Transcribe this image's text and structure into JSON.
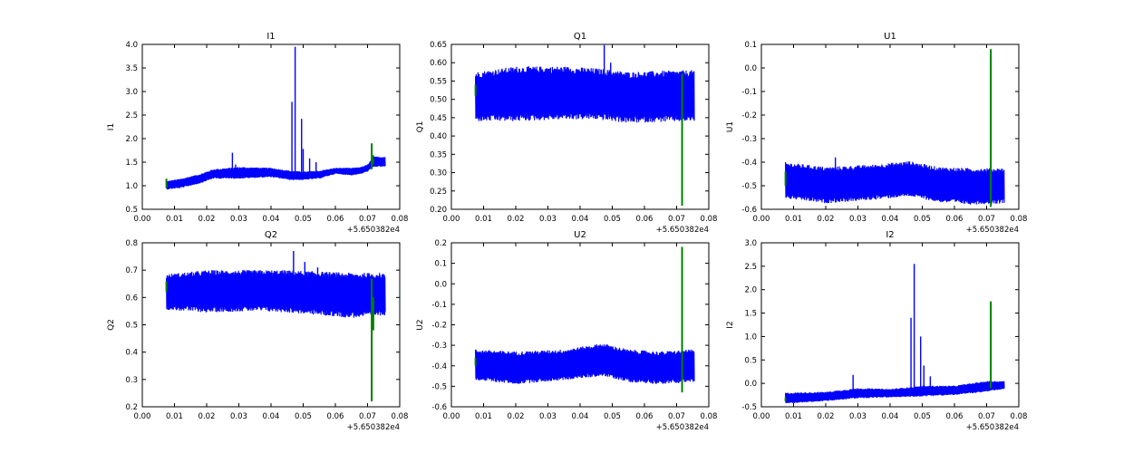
{
  "figure": {
    "background": "#ffffff",
    "series_colors": [
      "#0000ff",
      "#008000"
    ]
  },
  "chart_data": [
    {
      "type": "line",
      "title": "I1",
      "xlabel": "",
      "ylabel": "I1",
      "xlim": [
        0.0,
        0.08
      ],
      "ylim": [
        0.5,
        4.0
      ],
      "xticks": [
        "0.00",
        "0.01",
        "0.02",
        "0.03",
        "0.04",
        "0.05",
        "0.06",
        "0.07",
        "0.08"
      ],
      "yticks": [
        "0.5",
        "1.0",
        "1.5",
        "2.0",
        "2.5",
        "3.0",
        "3.5",
        "4.0"
      ],
      "x_offset_label": "+5.650382e4",
      "grid": false,
      "series": [
        {
          "color": "#0000ff",
          "x_range": [
            0.0075,
            0.0755
          ],
          "envelope": [
            [
              0.0075,
              0.92,
              1.1
            ],
            [
              0.012,
              0.95,
              1.15
            ],
            [
              0.018,
              1.05,
              1.25
            ],
            [
              0.022,
              1.15,
              1.35
            ],
            [
              0.03,
              1.15,
              1.4
            ],
            [
              0.04,
              1.18,
              1.38
            ],
            [
              0.046,
              1.12,
              1.32
            ],
            [
              0.05,
              1.12,
              1.3
            ],
            [
              0.055,
              1.15,
              1.32
            ],
            [
              0.06,
              1.25,
              1.38
            ],
            [
              0.065,
              1.22,
              1.38
            ],
            [
              0.068,
              1.25,
              1.4
            ],
            [
              0.07,
              1.3,
              1.45
            ],
            [
              0.072,
              1.4,
              1.62
            ],
            [
              0.0755,
              1.4,
              1.62
            ]
          ],
          "spikes": [
            [
              0.028,
              1.7
            ],
            [
              0.029,
              1.45
            ],
            [
              0.0465,
              2.78
            ],
            [
              0.0475,
              3.95
            ],
            [
              0.0495,
              2.42
            ],
            [
              0.05,
              1.78
            ],
            [
              0.052,
              1.58
            ],
            [
              0.054,
              1.5
            ]
          ]
        },
        {
          "color": "#008000",
          "segments": [
            [
              0.0075,
              0.95,
              1.15
            ],
            [
              0.0713,
              1.35,
              1.9
            ],
            [
              0.0717,
              1.45,
              1.65
            ]
          ]
        }
      ]
    },
    {
      "type": "line",
      "title": "Q1",
      "xlabel": "",
      "ylabel": "Q1",
      "xlim": [
        0.0,
        0.08
      ],
      "ylim": [
        0.2,
        0.65
      ],
      "xticks": [
        "0.00",
        "0.01",
        "0.02",
        "0.03",
        "0.04",
        "0.05",
        "0.06",
        "0.07",
        "0.08"
      ],
      "yticks": [
        "0.20",
        "0.25",
        "0.30",
        "0.35",
        "0.40",
        "0.45",
        "0.50",
        "0.55",
        "0.60",
        "0.65"
      ],
      "x_offset_label": "+5.650382e4",
      "grid": false,
      "series": [
        {
          "color": "#0000ff",
          "x_range": [
            0.0075,
            0.0755
          ],
          "envelope": [
            [
              0.0075,
              0.44,
              0.575
            ],
            [
              0.02,
              0.44,
              0.59
            ],
            [
              0.035,
              0.445,
              0.59
            ],
            [
              0.045,
              0.445,
              0.585
            ],
            [
              0.055,
              0.435,
              0.575
            ],
            [
              0.065,
              0.438,
              0.578
            ],
            [
              0.0755,
              0.44,
              0.58
            ]
          ],
          "spikes": [
            [
              0.0475,
              0.648
            ],
            [
              0.0495,
              0.6
            ]
          ]
        },
        {
          "color": "#008000",
          "segments": [
            [
              0.0075,
              0.51,
              0.54
            ],
            [
              0.0717,
              0.21,
              0.57
            ]
          ]
        }
      ]
    },
    {
      "type": "line",
      "title": "U1",
      "xlabel": "",
      "ylabel": "U1",
      "xlim": [
        0.0,
        0.08
      ],
      "ylim": [
        -0.6,
        0.1
      ],
      "xticks": [
        "0.00",
        "0.01",
        "0.02",
        "0.03",
        "0.04",
        "0.05",
        "0.06",
        "0.07",
        "0.08"
      ],
      "yticks": [
        "-0.6",
        "-0.5",
        "-0.4",
        "-0.3",
        "-0.2",
        "-0.1",
        "0.0",
        "0.1"
      ],
      "x_offset_label": "+5.650382e4",
      "grid": false,
      "series": [
        {
          "color": "#0000ff",
          "x_range": [
            0.0075,
            0.0755
          ],
          "envelope": [
            [
              0.0075,
              -0.555,
              -0.4
            ],
            [
              0.02,
              -0.575,
              -0.42
            ],
            [
              0.035,
              -0.56,
              -0.41
            ],
            [
              0.046,
              -0.545,
              -0.395
            ],
            [
              0.055,
              -0.57,
              -0.42
            ],
            [
              0.065,
              -0.58,
              -0.425
            ],
            [
              0.0755,
              -0.575,
              -0.425
            ]
          ],
          "spikes": [
            [
              0.023,
              -0.38
            ]
          ]
        },
        {
          "color": "#008000",
          "segments": [
            [
              0.0075,
              -0.5,
              -0.44
            ],
            [
              0.0713,
              -0.59,
              0.08
            ]
          ]
        }
      ]
    },
    {
      "type": "line",
      "title": "Q2",
      "xlabel": "",
      "ylabel": "Q2",
      "xlim": [
        0.0,
        0.08
      ],
      "ylim": [
        0.2,
        0.8
      ],
      "xticks": [
        "0.00",
        "0.01",
        "0.02",
        "0.03",
        "0.04",
        "0.05",
        "0.06",
        "0.07",
        "0.08"
      ],
      "yticks": [
        "0.2",
        "0.3",
        "0.4",
        "0.5",
        "0.6",
        "0.7",
        "0.8"
      ],
      "x_offset_label": "+5.650382e4",
      "grid": false,
      "series": [
        {
          "color": "#0000ff",
          "x_range": [
            0.0075,
            0.0755
          ],
          "envelope": [
            [
              0.0075,
              0.555,
              0.685
            ],
            [
              0.02,
              0.545,
              0.7
            ],
            [
              0.035,
              0.55,
              0.7
            ],
            [
              0.045,
              0.545,
              0.7
            ],
            [
              0.055,
              0.535,
              0.695
            ],
            [
              0.065,
              0.525,
              0.69
            ],
            [
              0.0755,
              0.535,
              0.69
            ]
          ],
          "spikes": [
            [
              0.047,
              0.77
            ],
            [
              0.0505,
              0.73
            ],
            [
              0.0545,
              0.71
            ]
          ]
        },
        {
          "color": "#008000",
          "segments": [
            [
              0.0075,
              0.62,
              0.66
            ],
            [
              0.0713,
              0.22,
              0.67
            ],
            [
              0.0718,
              0.48,
              0.6
            ]
          ]
        }
      ]
    },
    {
      "type": "line",
      "title": "U2",
      "xlabel": "",
      "ylabel": "U2",
      "xlim": [
        0.0,
        0.08
      ],
      "ylim": [
        -0.6,
        0.2
      ],
      "xticks": [
        "0.00",
        "0.01",
        "0.02",
        "0.03",
        "0.04",
        "0.05",
        "0.06",
        "0.07",
        "0.08"
      ],
      "yticks": [
        "-0.6",
        "-0.5",
        "-0.4",
        "-0.3",
        "-0.2",
        "-0.1",
        "0.0",
        "0.1",
        "0.2"
      ],
      "x_offset_label": "+5.650382e4",
      "grid": false,
      "series": [
        {
          "color": "#0000ff",
          "x_range": [
            0.0075,
            0.0755
          ],
          "envelope": [
            [
              0.0075,
              -0.47,
              -0.32
            ],
            [
              0.02,
              -0.49,
              -0.33
            ],
            [
              0.035,
              -0.47,
              -0.32
            ],
            [
              0.047,
              -0.45,
              -0.29
            ],
            [
              0.055,
              -0.48,
              -0.32
            ],
            [
              0.065,
              -0.49,
              -0.33
            ],
            [
              0.0755,
              -0.48,
              -0.32
            ]
          ],
          "spikes": []
        },
        {
          "color": "#008000",
          "segments": [
            [
              0.0075,
              -0.4,
              -0.36
            ],
            [
              0.0717,
              -0.53,
              0.18
            ]
          ]
        }
      ]
    },
    {
      "type": "line",
      "title": "I2",
      "xlabel": "",
      "ylabel": "I2",
      "xlim": [
        0.0,
        0.08
      ],
      "ylim": [
        -0.5,
        3.0
      ],
      "xticks": [
        "0.00",
        "0.01",
        "0.02",
        "0.03",
        "0.04",
        "0.05",
        "0.06",
        "0.07",
        "0.08"
      ],
      "yticks": [
        "-0.5",
        "0.0",
        "0.5",
        "1.0",
        "1.5",
        "2.0",
        "2.5",
        "3.0"
      ],
      "x_offset_label": "+5.650382e4",
      "grid": false,
      "series": [
        {
          "color": "#0000ff",
          "x_range": [
            0.0075,
            0.0755
          ],
          "envelope": [
            [
              0.0075,
              -0.43,
              -0.2
            ],
            [
              0.02,
              -0.38,
              -0.18
            ],
            [
              0.03,
              -0.32,
              -0.1
            ],
            [
              0.04,
              -0.3,
              -0.12
            ],
            [
              0.05,
              -0.28,
              -0.05
            ],
            [
              0.06,
              -0.25,
              -0.05
            ],
            [
              0.07,
              -0.18,
              0.05
            ],
            [
              0.0755,
              -0.12,
              0.05
            ]
          ],
          "spikes": [
            [
              0.0285,
              0.18
            ],
            [
              0.0465,
              1.4
            ],
            [
              0.0475,
              2.55
            ],
            [
              0.0495,
              1.0
            ],
            [
              0.0505,
              0.38
            ],
            [
              0.0525,
              0.15
            ]
          ]
        },
        {
          "color": "#008000",
          "segments": [
            [
              0.0075,
              -0.38,
              -0.3
            ],
            [
              0.0713,
              -0.1,
              1.75
            ]
          ]
        }
      ]
    }
  ]
}
